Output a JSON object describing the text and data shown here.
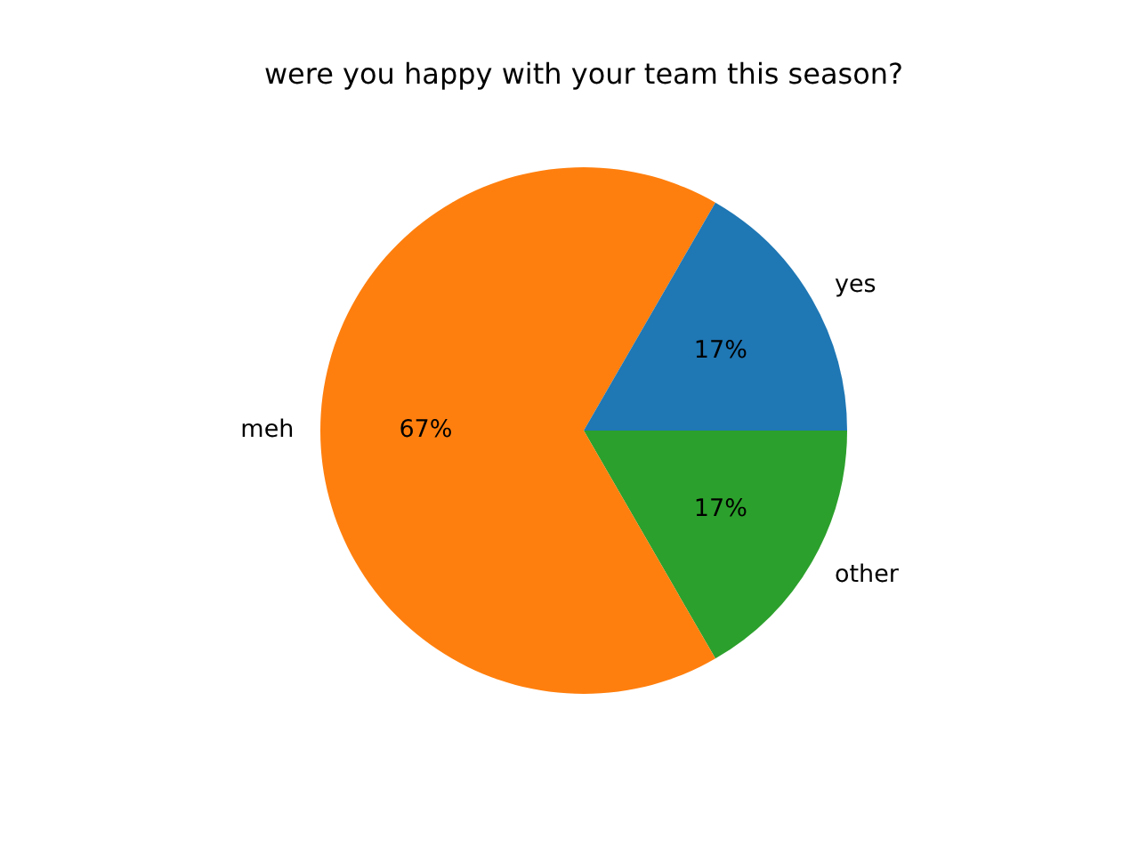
{
  "chart_data": {
    "type": "pie",
    "title": "were you happy with your team this season?",
    "categories": [
      "yes",
      "meh",
      "other"
    ],
    "values": [
      16.67,
      66.67,
      16.67
    ],
    "value_labels": [
      "17%",
      "67%",
      "17%"
    ],
    "colors": [
      "#1f77b4",
      "#ff7f0e",
      "#2ca02c"
    ],
    "legend": false
  }
}
